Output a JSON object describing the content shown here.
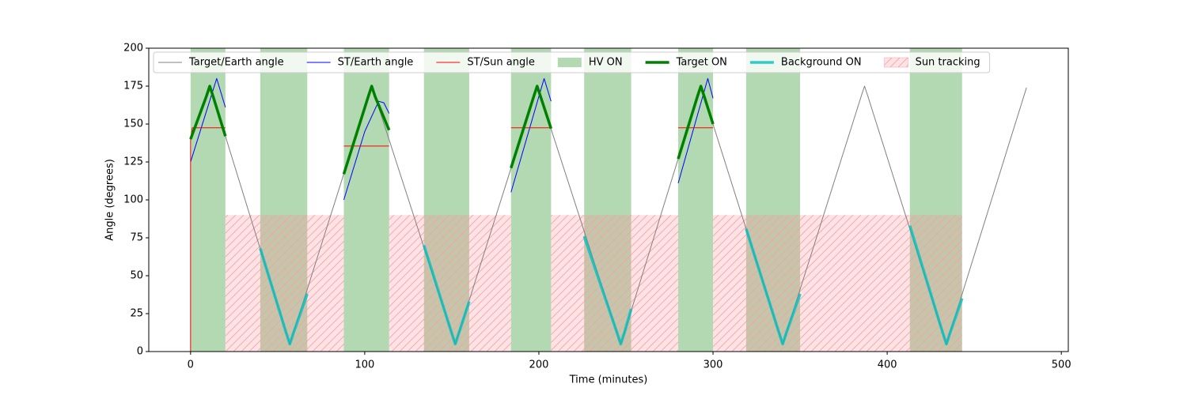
{
  "chart_data": {
    "type": "line",
    "xlabel": "Time (minutes)",
    "ylabel": "Angle (degrees)",
    "xlim": [
      -24,
      504
    ],
    "ylim": [
      0,
      200
    ],
    "xticks": [
      0,
      100,
      200,
      300,
      400,
      500
    ],
    "yticks": [
      0,
      25,
      50,
      75,
      100,
      125,
      150,
      175,
      200
    ],
    "legend": "upper left",
    "series": [
      {
        "name": "Target/Earth angle",
        "kind": "line",
        "color": "gray",
        "width": 1,
        "x": [
          0,
          9,
          11,
          13,
          55,
          57,
          59,
          102,
          104,
          106,
          150,
          152,
          154,
          197,
          199,
          201,
          245,
          247,
          249,
          291,
          293,
          295,
          338,
          340,
          342,
          385,
          387,
          389,
          432,
          434,
          436,
          480
        ],
        "values": [
          140,
          168,
          175,
          168,
          12,
          5,
          12,
          168,
          175,
          168,
          12,
          5,
          12,
          168,
          175,
          168,
          12,
          5,
          12,
          168,
          175,
          168,
          12,
          5,
          12,
          168,
          175,
          168,
          12,
          5,
          12,
          174
        ]
      },
      {
        "name": "ST/Earth angle",
        "kind": "line",
        "color": "blue",
        "width": 1,
        "x": [
          0,
          15,
          20,
          null,
          88,
          100,
          108,
          111,
          114,
          null,
          184,
          203,
          207,
          null,
          280,
          297,
          300
        ],
        "values": [
          125,
          180,
          161,
          null,
          100,
          145,
          165,
          164,
          157,
          null,
          105,
          180,
          165,
          null,
          111,
          180,
          167
        ]
      },
      {
        "name": "ST/Sun angle",
        "kind": "line",
        "color": "red",
        "width": 1,
        "x": [
          0,
          0,
          1,
          20,
          null,
          88,
          114,
          null,
          184,
          207,
          null,
          280,
          300
        ],
        "values": [
          0,
          140,
          147.5,
          147.5,
          null,
          135.5,
          135.5,
          null,
          147.5,
          147.5,
          null,
          147.5,
          147.5
        ]
      },
      {
        "name": "HV ON",
        "kind": "span",
        "color": "green",
        "alpha": 0.3,
        "starts": [
          0,
          40,
          88,
          134,
          184,
          226,
          280,
          319,
          413
        ],
        "ends": [
          20,
          67,
          114,
          160,
          207,
          253,
          300,
          350,
          443
        ]
      },
      {
        "name": "Target ON",
        "kind": "line",
        "color": "green",
        "width": 3.5,
        "x": [
          0,
          9,
          11,
          13,
          20,
          null,
          88,
          102,
          104,
          106,
          114,
          null,
          184,
          197,
          199,
          201,
          207,
          null,
          280,
          291,
          293,
          295,
          300
        ],
        "values": [
          140,
          168,
          175,
          168,
          142,
          null,
          117,
          168,
          175,
          168,
          146,
          null,
          121,
          168,
          175,
          168,
          147,
          null,
          127,
          168,
          175,
          168,
          150
        ]
      },
      {
        "name": "Background ON",
        "kind": "line",
        "color": "#00bfbf",
        "alpha": 0.8,
        "width": 3.5,
        "x": [
          40,
          55,
          57,
          59,
          67,
          null,
          134,
          150,
          152,
          154,
          160,
          null,
          226,
          245,
          247,
          249,
          253,
          null,
          319,
          338,
          340,
          342,
          350,
          null,
          413,
          432,
          434,
          436,
          443
        ],
        "values": [
          68,
          12,
          5,
          12,
          38,
          null,
          70,
          12,
          5,
          12,
          33,
          null,
          76,
          12,
          5,
          12,
          28,
          null,
          81,
          12,
          5,
          12,
          38,
          null,
          83,
          12,
          5,
          12,
          35
        ]
      },
      {
        "name": "Sun tracking",
        "kind": "span",
        "color": "#ff8c94",
        "alpha": 0.25,
        "hatch": true,
        "ymax": 90,
        "starts": [
          20,
          114,
          207,
          300
        ],
        "ends": [
          88,
          184,
          280,
          443
        ]
      }
    ]
  }
}
